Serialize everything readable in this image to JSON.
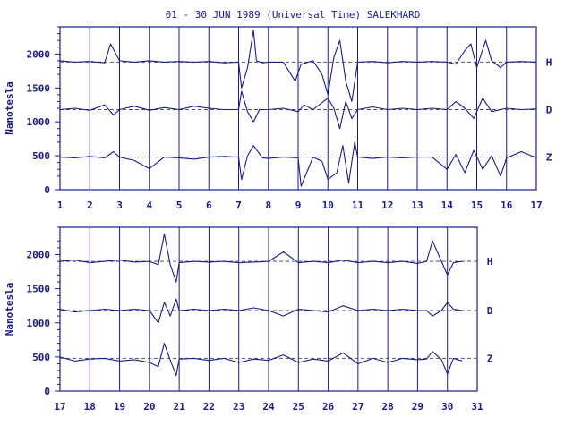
{
  "chart_data": {
    "type": "line",
    "title": "01 - 30 JUN 1989 (Universal Time) SALEKHARD",
    "ylabel": "Nanotesla",
    "colors": {
      "axis": "#1a1a8c",
      "trace": "#1a1a8c",
      "baseline": "#555555"
    },
    "panels": [
      {
        "name": "panel-top",
        "xlim": [
          1,
          17
        ],
        "x_ticks": [
          "1",
          "2",
          "3",
          "4",
          "5",
          "6",
          "7",
          "8",
          "9",
          "10",
          "11",
          "12",
          "13",
          "14",
          "15",
          "16",
          "17"
        ],
        "ylim": [
          0,
          2400
        ],
        "y_ticks": [
          "0",
          "500",
          "1000",
          "1500",
          "2000"
        ],
        "series": [
          {
            "name": "H",
            "baseline": 1880,
            "x": [
              1,
              1.5,
              2,
              2.5,
              2.7,
              3,
              3.5,
              4,
              4.5,
              5,
              5.5,
              6,
              6.5,
              7,
              7.1,
              7.3,
              7.5,
              7.6,
              7.8,
              8,
              8.5,
              8.9,
              9.1,
              9.5,
              9.8,
              10,
              10.2,
              10.4,
              10.6,
              10.8,
              11,
              11.5,
              12,
              12.5,
              13,
              13.5,
              14,
              14.3,
              14.6,
              14.8,
              15,
              15.3,
              15.5,
              15.8,
              16,
              16.5,
              17
            ],
            "y": [
              1900,
              1880,
              1890,
              1870,
              2150,
              1900,
              1880,
              1900,
              1880,
              1890,
              1880,
              1890,
              1870,
              1880,
              1500,
              1800,
              2350,
              1900,
              1870,
              1880,
              1880,
              1600,
              1850,
              1900,
              1700,
              1400,
              1950,
              2200,
              1600,
              1300,
              1880,
              1890,
              1870,
              1890,
              1880,
              1890,
              1880,
              1850,
              2050,
              2150,
              1800,
              2200,
              1900,
              1800,
              1880,
              1890,
              1880
            ]
          },
          {
            "name": "D",
            "baseline": 1180,
            "x": [
              1,
              1.5,
              2,
              2.5,
              2.8,
              3,
              3.5,
              4,
              4.5,
              5,
              5.5,
              6,
              6.5,
              7,
              7.1,
              7.3,
              7.5,
              7.7,
              8,
              8.5,
              9,
              9.2,
              9.5,
              10,
              10.2,
              10.4,
              10.6,
              10.8,
              11,
              11.5,
              12,
              12.5,
              13,
              13.5,
              14,
              14.3,
              14.6,
              14.9,
              15.2,
              15.5,
              15.8,
              16,
              16.5,
              17
            ],
            "y": [
              1180,
              1200,
              1170,
              1250,
              1100,
              1180,
              1230,
              1170,
              1210,
              1180,
              1230,
              1200,
              1180,
              1180,
              1450,
              1150,
              1000,
              1180,
              1180,
              1200,
              1150,
              1250,
              1180,
              1350,
              1200,
              900,
              1300,
              1050,
              1180,
              1220,
              1180,
              1200,
              1180,
              1200,
              1180,
              1300,
              1200,
              1050,
              1350,
              1150,
              1180,
              1200,
              1180,
              1190
            ]
          },
          {
            "name": "Z",
            "baseline": 480,
            "x": [
              1,
              1.5,
              2,
              2.5,
              2.8,
              3,
              3.5,
              4,
              4.5,
              5,
              5.5,
              6,
              6.5,
              7,
              7.1,
              7.3,
              7.5,
              7.8,
              8,
              8.5,
              9,
              9.1,
              9.5,
              9.8,
              10,
              10.3,
              10.5,
              10.7,
              10.9,
              11,
              11.5,
              12,
              12.5,
              13,
              13.5,
              14,
              14.3,
              14.6,
              14.9,
              15.2,
              15.5,
              15.8,
              16,
              16.5,
              17
            ],
            "y": [
              480,
              470,
              490,
              470,
              560,
              480,
              430,
              310,
              480,
              470,
              450,
              480,
              490,
              480,
              150,
              500,
              650,
              470,
              460,
              480,
              470,
              50,
              480,
              420,
              150,
              250,
              650,
              100,
              700,
              480,
              460,
              480,
              470,
              480,
              480,
              300,
              520,
              250,
              580,
              300,
              500,
              200,
              470,
              560,
              470
            ]
          }
        ]
      },
      {
        "name": "panel-bottom",
        "xlim": [
          17,
          31
        ],
        "x_ticks": [
          "17",
          "18",
          "19",
          "20",
          "21",
          "22",
          "23",
          "24",
          "25",
          "26",
          "27",
          "28",
          "29",
          "30",
          "31"
        ],
        "ylim": [
          0,
          2400
        ],
        "y_ticks": [
          "0",
          "500",
          "1000",
          "1500",
          "2000"
        ],
        "series": [
          {
            "name": "H",
            "baseline": 1900,
            "x": [
              17,
              17.5,
              18,
              18.5,
              19,
              19.5,
              20,
              20.3,
              20.5,
              20.7,
              20.9,
              21,
              21.5,
              22,
              22.5,
              23,
              23.5,
              24,
              24.5,
              25,
              25.5,
              26,
              26.5,
              27,
              27.5,
              28,
              28.5,
              29,
              29.3,
              29.5,
              29.8,
              30,
              30.2,
              30.5
            ],
            "y": [
              1900,
              1920,
              1880,
              1900,
              1920,
              1890,
              1900,
              1850,
              2300,
              1850,
              1600,
              1880,
              1900,
              1890,
              1900,
              1880,
              1890,
              1900,
              2040,
              1880,
              1900,
              1880,
              1920,
              1880,
              1900,
              1880,
              1900,
              1870,
              1900,
              2200,
              1900,
              1700,
              1880,
              1900
            ]
          },
          {
            "name": "D",
            "baseline": 1180,
            "x": [
              17,
              17.5,
              18,
              18.5,
              19,
              19.5,
              20,
              20.3,
              20.5,
              20.7,
              20.9,
              21,
              21.5,
              22,
              22.5,
              23,
              23.5,
              24,
              24.5,
              25,
              25.5,
              26,
              26.5,
              27,
              27.5,
              28,
              28.5,
              29,
              29.3,
              29.5,
              29.8,
              30,
              30.2,
              30.5
            ],
            "y": [
              1200,
              1160,
              1180,
              1200,
              1180,
              1200,
              1180,
              1000,
              1300,
              1100,
              1350,
              1180,
              1200,
              1180,
              1200,
              1180,
              1220,
              1180,
              1100,
              1200,
              1180,
              1160,
              1250,
              1180,
              1200,
              1180,
              1200,
              1180,
              1180,
              1100,
              1180,
              1300,
              1200,
              1180
            ]
          },
          {
            "name": "Z",
            "baseline": 480,
            "x": [
              17,
              17.5,
              18,
              18.5,
              19,
              19.5,
              20,
              20.3,
              20.5,
              20.7,
              20.9,
              21,
              21.5,
              22,
              22.5,
              23,
              23.5,
              24,
              24.5,
              25,
              25.5,
              26,
              26.5,
              27,
              27.5,
              28,
              28.5,
              29,
              29.3,
              29.5,
              29.8,
              30,
              30.2,
              30.5
            ],
            "y": [
              500,
              440,
              470,
              480,
              440,
              460,
              420,
              360,
              700,
              450,
              230,
              470,
              480,
              450,
              480,
              420,
              470,
              450,
              530,
              420,
              470,
              440,
              560,
              400,
              480,
              420,
              480,
              460,
              470,
              580,
              460,
              250,
              480,
              440
            ]
          }
        ]
      }
    ]
  }
}
